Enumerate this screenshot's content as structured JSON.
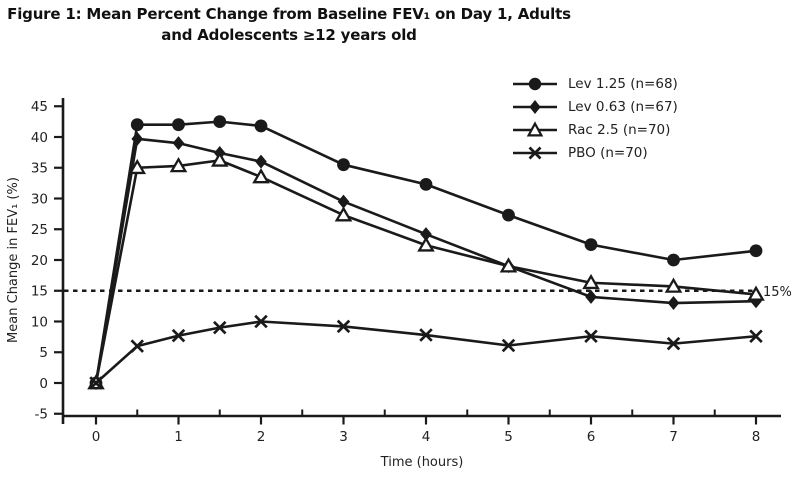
{
  "figure": {
    "title_line1": "Figure 1: Mean Percent Change from Baseline FEV₁ on Day 1, Adults",
    "title_line2": "and Adolescents ≥12 years old"
  },
  "chart_data": {
    "type": "line",
    "title": "Figure 1: Mean Percent Change from Baseline FEV₁ on Day 1, Adults and Adolescents ≥12 years old",
    "xlabel": "Time (hours)",
    "ylabel": "Mean Change in FEV₁ (%)",
    "x": [
      0,
      0.5,
      1,
      1.5,
      2,
      3,
      4,
      5,
      6,
      7,
      8
    ],
    "xlim": [
      0,
      8
    ],
    "ylim": [
      -5,
      45
    ],
    "y_ticks": [
      -5,
      0,
      5,
      10,
      15,
      20,
      25,
      30,
      35,
      40,
      45
    ],
    "x_major_ticks": [
      0,
      1,
      2,
      3,
      4,
      5,
      6,
      7,
      8
    ],
    "x_minor_step": 0.5,
    "grid": false,
    "legend_position": "top-right",
    "line_color": "#1a1a1a",
    "ref_line": {
      "y": 15,
      "label": "15%",
      "style": "dashed"
    },
    "series": [
      {
        "name": "Lev 1.25",
        "label": "Lev 1.25 (n=68)",
        "marker": "circle-filled",
        "values": [
          0,
          42,
          42,
          42.5,
          41.8,
          35.5,
          32.3,
          27.3,
          22.5,
          20,
          21.5
        ]
      },
      {
        "name": "Lev 0.63",
        "label": "Lev 0.63 (n=67)",
        "marker": "diamond-filled",
        "values": [
          0,
          39.7,
          39,
          37.4,
          36,
          29.5,
          24.2,
          19,
          14,
          13,
          13.3
        ]
      },
      {
        "name": "Rac 2.5",
        "label": "Rac 2.5 (n=70)",
        "marker": "triangle-open",
        "values": [
          0,
          35,
          35.3,
          36.2,
          33.5,
          27.3,
          22.4,
          19,
          16.3,
          15.7,
          14.4
        ]
      },
      {
        "name": "PBO",
        "label": "PBO (n=70)",
        "marker": "x",
        "values": [
          0,
          6,
          7.7,
          9,
          10,
          9.2,
          7.8,
          6.1,
          7.6,
          6.4,
          7.6
        ]
      }
    ]
  }
}
